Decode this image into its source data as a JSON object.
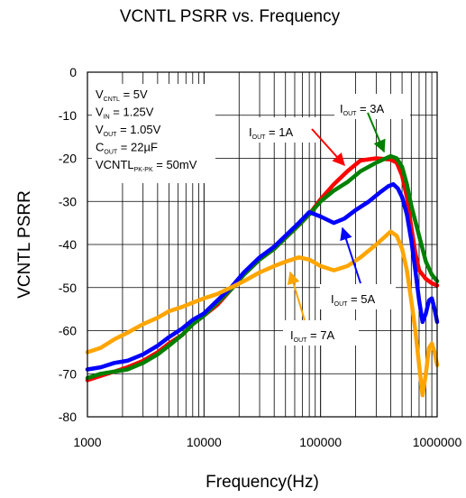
{
  "chart_data": {
    "type": "line",
    "title": "VCNTL PSRR vs. Frequency",
    "xlabel": "Frequency(Hz)",
    "ylabel": "VCNTL PSRR",
    "x_scale": "log",
    "xlim": [
      1000,
      1000000
    ],
    "ylim": [
      -80,
      0
    ],
    "x_ticks": [
      "1000",
      "10000",
      "100000",
      "1000000"
    ],
    "y_ticks": [
      "0",
      "-10",
      "-20",
      "-30",
      "-40",
      "-50",
      "-60",
      "-70",
      "-80"
    ],
    "grid": true,
    "conditions": [
      {
        "main": "V",
        "sub": "CNTL",
        "rest": " = 5V"
      },
      {
        "main": "V",
        "sub": "IN",
        "rest": " = 1.25V"
      },
      {
        "main": "V",
        "sub": "OUT",
        "rest": " = 1.05V"
      },
      {
        "main": "C",
        "sub": "OUT",
        "rest": " = 22µF"
      },
      {
        "main": "VCNTL",
        "sub": "PK-PK",
        "rest": " = 50mV"
      }
    ],
    "series": [
      {
        "name": "IOUT = 1A",
        "label": {
          "main": "I",
          "sub": "OUT",
          "rest": " = 1A"
        },
        "color": "#ff0000",
        "points": [
          [
            1000,
            -71.5
          ],
          [
            1300,
            -70.5
          ],
          [
            1700,
            -69.5
          ],
          [
            2200,
            -68.5
          ],
          [
            3000,
            -67
          ],
          [
            4000,
            -65
          ],
          [
            5000,
            -63
          ],
          [
            6500,
            -61
          ],
          [
            8000,
            -58.5
          ],
          [
            10000,
            -56.5
          ],
          [
            13000,
            -54
          ],
          [
            17000,
            -50.5
          ],
          [
            22000,
            -47
          ],
          [
            30000,
            -43.5
          ],
          [
            40000,
            -41
          ],
          [
            50000,
            -38.5
          ],
          [
            65000,
            -35.5
          ],
          [
            80000,
            -33
          ],
          [
            100000,
            -29.5
          ],
          [
            130000,
            -26
          ],
          [
            170000,
            -23
          ],
          [
            220000,
            -20.5
          ],
          [
            300000,
            -20
          ],
          [
            400000,
            -20.3
          ],
          [
            450000,
            -21
          ],
          [
            500000,
            -24
          ],
          [
            550000,
            -29
          ],
          [
            600000,
            -36
          ],
          [
            650000,
            -42
          ],
          [
            700000,
            -46
          ],
          [
            800000,
            -48
          ],
          [
            900000,
            -49
          ],
          [
            1000000,
            -49.5
          ]
        ]
      },
      {
        "name": "IOUT = 3A",
        "label": {
          "main": "I",
          "sub": "OUT",
          "rest": " = 3A"
        },
        "color": "#008000",
        "points": [
          [
            1000,
            -71
          ],
          [
            1300,
            -70
          ],
          [
            1700,
            -69.5
          ],
          [
            2200,
            -69
          ],
          [
            3000,
            -67.5
          ],
          [
            4000,
            -65.5
          ],
          [
            5000,
            -63.5
          ],
          [
            6500,
            -61
          ],
          [
            8000,
            -58.5
          ],
          [
            10000,
            -56.5
          ],
          [
            13000,
            -53.5
          ],
          [
            17000,
            -50.5
          ],
          [
            22000,
            -47
          ],
          [
            30000,
            -43.5
          ],
          [
            40000,
            -41
          ],
          [
            50000,
            -38.5
          ],
          [
            65000,
            -35.5
          ],
          [
            80000,
            -33
          ],
          [
            100000,
            -30
          ],
          [
            130000,
            -27.5
          ],
          [
            170000,
            -25.5
          ],
          [
            220000,
            -23
          ],
          [
            300000,
            -21
          ],
          [
            400000,
            -19.5
          ],
          [
            450000,
            -20
          ],
          [
            500000,
            -22
          ],
          [
            550000,
            -26
          ],
          [
            600000,
            -31
          ],
          [
            700000,
            -38
          ],
          [
            800000,
            -44
          ],
          [
            900000,
            -47
          ],
          [
            1000000,
            -48.5
          ]
        ]
      },
      {
        "name": "IOUT = 5A",
        "label": {
          "main": "I",
          "sub": "OUT",
          "rest": " = 5A"
        },
        "color": "#0000ff",
        "points": [
          [
            1000,
            -69
          ],
          [
            1300,
            -68.5
          ],
          [
            1700,
            -67.5
          ],
          [
            2200,
            -67
          ],
          [
            3000,
            -65.5
          ],
          [
            4000,
            -63.5
          ],
          [
            5000,
            -61.5
          ],
          [
            6500,
            -59.5
          ],
          [
            8000,
            -57.5
          ],
          [
            10000,
            -56
          ],
          [
            13000,
            -53
          ],
          [
            17000,
            -50
          ],
          [
            22000,
            -46.5
          ],
          [
            30000,
            -43
          ],
          [
            40000,
            -40.5
          ],
          [
            50000,
            -38
          ],
          [
            65000,
            -35
          ],
          [
            80000,
            -32.5
          ],
          [
            100000,
            -33.5
          ],
          [
            130000,
            -35
          ],
          [
            160000,
            -34
          ],
          [
            200000,
            -32
          ],
          [
            260000,
            -30
          ],
          [
            320000,
            -28
          ],
          [
            380000,
            -26.5
          ],
          [
            420000,
            -26
          ],
          [
            460000,
            -27
          ],
          [
            500000,
            -29
          ],
          [
            550000,
            -33
          ],
          [
            600000,
            -39
          ],
          [
            650000,
            -46
          ],
          [
            700000,
            -53
          ],
          [
            750000,
            -58
          ],
          [
            800000,
            -56
          ],
          [
            850000,
            -53
          ],
          [
            900000,
            -52.5
          ],
          [
            950000,
            -55
          ],
          [
            1000000,
            -58
          ]
        ]
      },
      {
        "name": "IOUT = 7A",
        "label": {
          "main": "I",
          "sub": "OUT",
          "rest": " = 7A"
        },
        "color": "#ffa500",
        "points": [
          [
            1000,
            -65
          ],
          [
            1300,
            -64
          ],
          [
            1700,
            -62
          ],
          [
            2200,
            -60.5
          ],
          [
            3000,
            -58.5
          ],
          [
            4000,
            -57
          ],
          [
            5000,
            -55.5
          ],
          [
            6500,
            -54.5
          ],
          [
            8000,
            -53.5
          ],
          [
            10000,
            -52.5
          ],
          [
            13000,
            -51.5
          ],
          [
            17000,
            -50
          ],
          [
            22000,
            -48.5
          ],
          [
            30000,
            -46.5
          ],
          [
            40000,
            -45
          ],
          [
            50000,
            -44
          ],
          [
            65000,
            -43
          ],
          [
            80000,
            -43.5
          ],
          [
            100000,
            -45
          ],
          [
            130000,
            -46
          ],
          [
            170000,
            -45
          ],
          [
            220000,
            -43
          ],
          [
            300000,
            -40
          ],
          [
            400000,
            -37
          ],
          [
            450000,
            -38
          ],
          [
            500000,
            -41
          ],
          [
            550000,
            -46
          ],
          [
            600000,
            -53
          ],
          [
            650000,
            -60
          ],
          [
            700000,
            -68
          ],
          [
            750000,
            -75
          ],
          [
            800000,
            -70
          ],
          [
            850000,
            -64
          ],
          [
            900000,
            -63
          ],
          [
            950000,
            -65
          ],
          [
            1000000,
            -68
          ]
        ]
      }
    ]
  }
}
